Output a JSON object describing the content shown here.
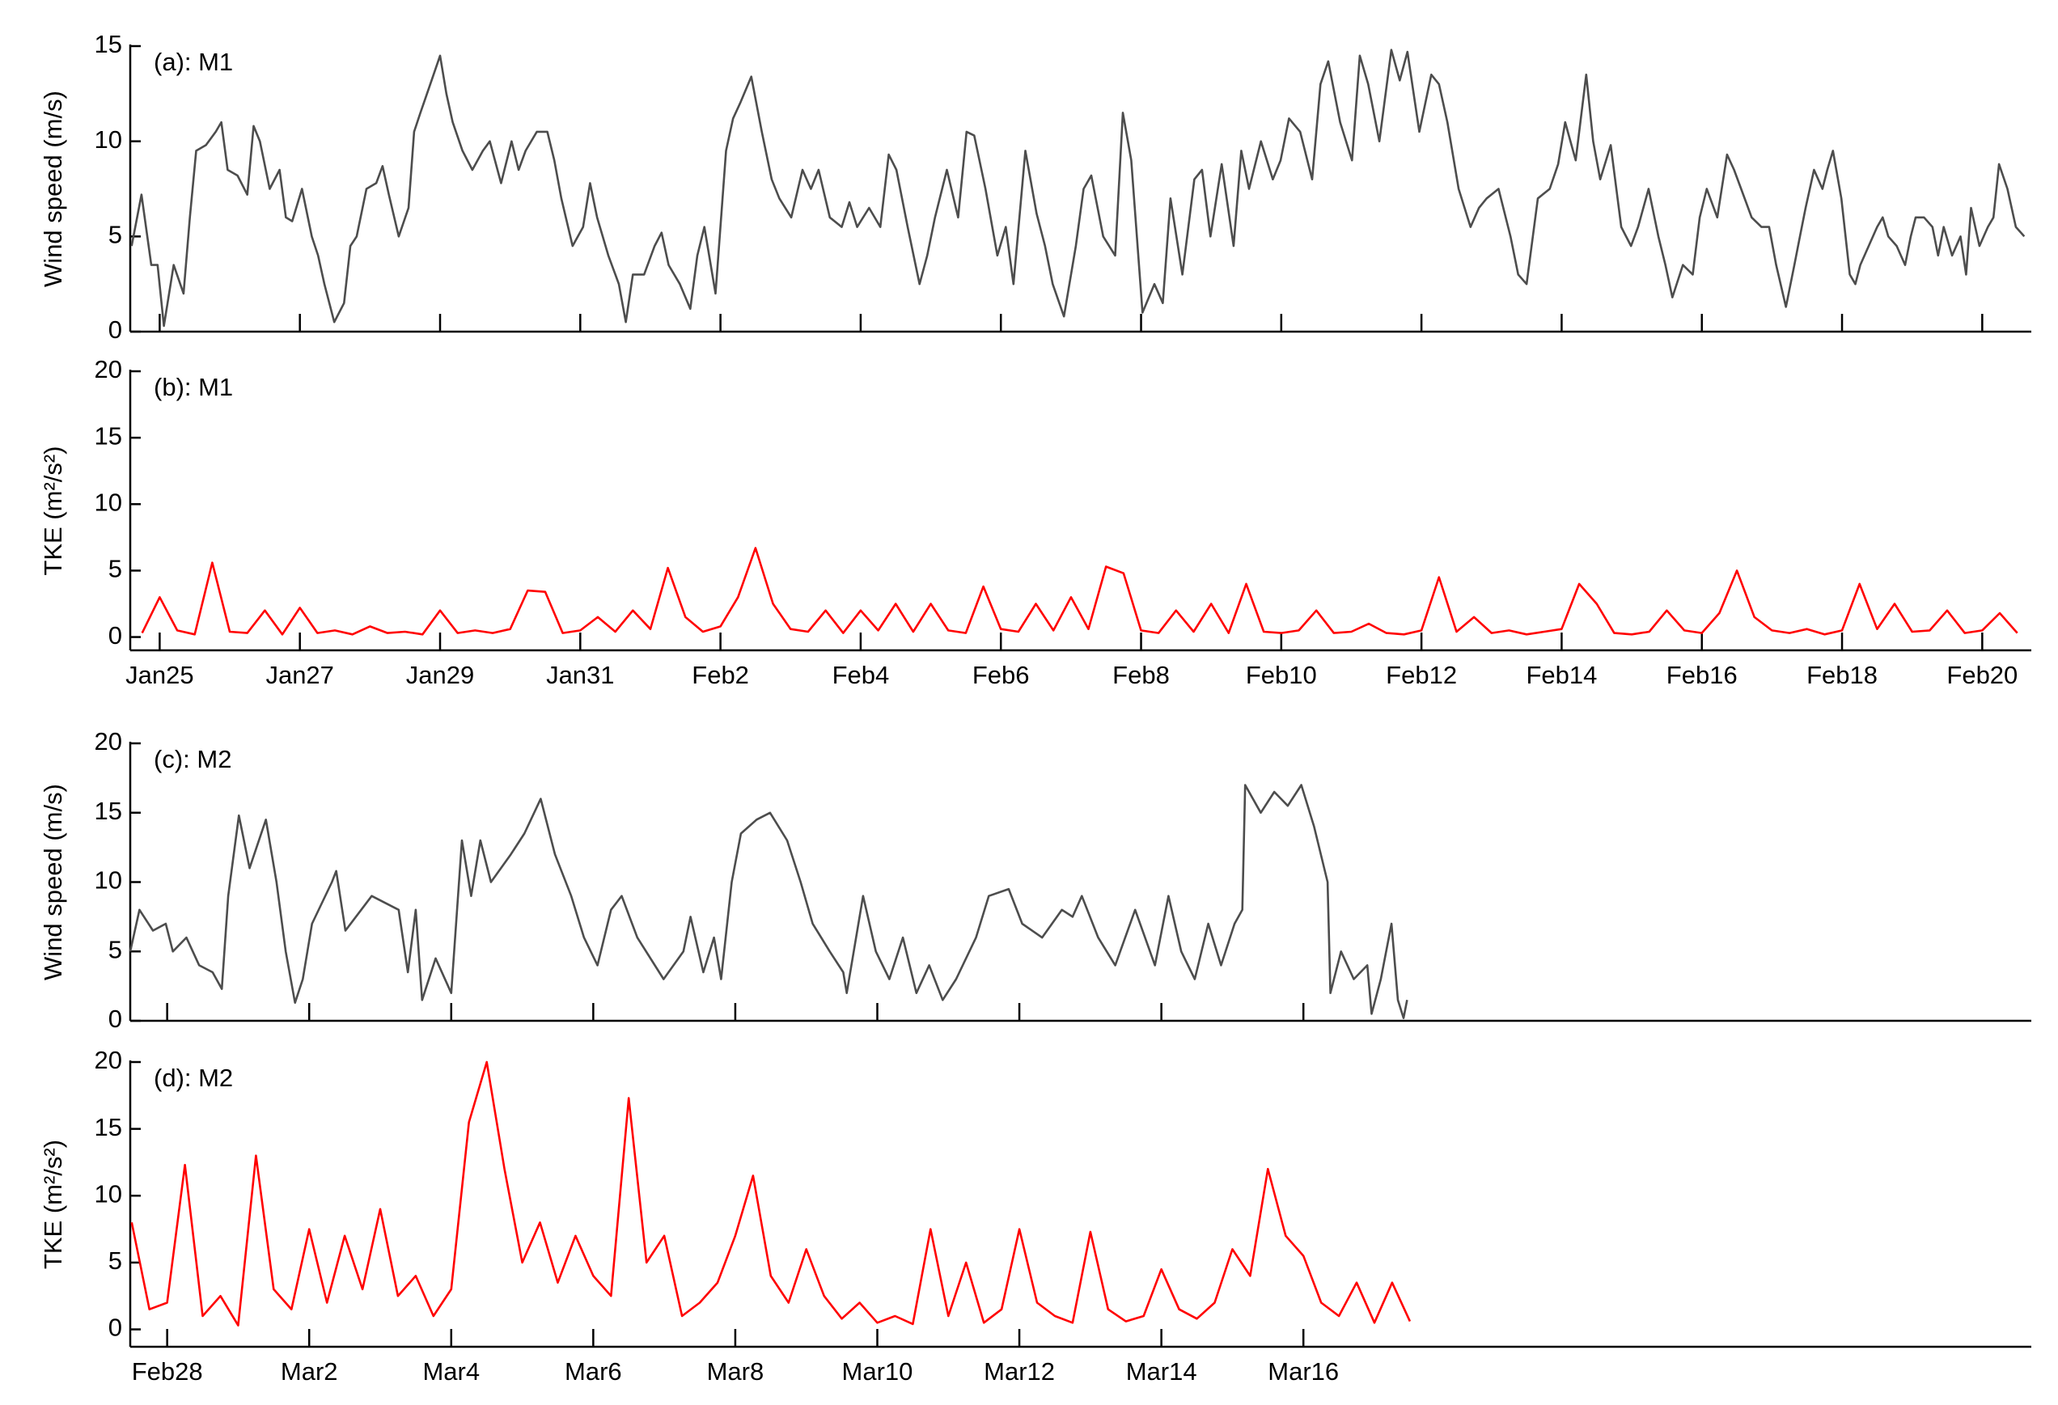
{
  "chart_data": [
    {
      "type": "line",
      "annotation": "(a): M1",
      "ylabel": "Wind speed (m/s)",
      "color": "#4d4d4d",
      "xlim": [
        24.58,
        51.7
      ],
      "ylim": [
        0,
        15
      ],
      "yticks": [
        0,
        5,
        10,
        15
      ],
      "x": [
        24.6,
        24.74,
        24.88,
        24.97,
        25.06,
        25.2,
        25.34,
        25.43,
        25.52,
        25.66,
        25.8,
        25.88,
        25.97,
        26.11,
        26.25,
        26.34,
        26.43,
        26.57,
        26.71,
        26.8,
        26.89,
        27.03,
        27.17,
        27.26,
        27.35,
        27.49,
        27.63,
        27.72,
        27.81,
        27.95,
        28.09,
        28.18,
        28.27,
        28.41,
        28.55,
        28.63,
        28.72,
        28.86,
        29.0,
        29.09,
        29.18,
        29.32,
        29.46,
        29.61,
        29.71,
        29.87,
        30.02,
        30.12,
        30.22,
        30.38,
        30.53,
        30.63,
        30.73,
        30.89,
        31.04,
        31.14,
        31.24,
        31.4,
        31.55,
        31.65,
        31.75,
        31.91,
        32.06,
        32.16,
        32.26,
        32.42,
        32.57,
        32.67,
        32.77,
        32.93,
        33.08,
        33.18,
        33.28,
        33.44,
        33.59,
        33.73,
        33.84,
        34.01,
        34.17,
        34.29,
        34.4,
        34.56,
        34.73,
        34.84,
        34.95,
        35.12,
        35.28,
        35.4,
        35.51,
        35.67,
        35.84,
        35.95,
        36.06,
        36.23,
        36.39,
        36.51,
        36.62,
        36.78,
        36.95,
        37.07,
        37.18,
        37.35,
        37.51,
        37.63,
        37.74,
        37.9,
        38.07,
        38.18,
        38.29,
        38.46,
        38.63,
        38.74,
        38.86,
        39.02,
        39.19,
        39.31,
        39.42,
        39.59,
        39.76,
        39.87,
        39.99,
        40.15,
        40.32,
        40.43,
        40.54,
        40.71,
        40.88,
        40.99,
        41.11,
        41.27,
        41.44,
        41.56,
        41.67,
        41.84,
        42.01,
        42.12,
        42.24,
        42.4,
        42.57,
        42.69,
        42.8,
        42.97,
        43.14,
        43.25,
        43.37,
        43.53,
        43.7,
        43.82,
        43.93,
        44.1,
        44.27,
        44.38,
        44.5,
        44.66,
        44.83,
        44.95,
        45.05,
        45.2,
        45.35,
        45.45,
        45.55,
        45.7,
        45.85,
        45.99,
        46.09,
        46.24,
        46.38,
        46.48,
        46.58,
        46.73,
        46.87,
        46.97,
        47.07,
        47.22,
        47.36,
        47.46,
        47.56,
        47.71,
        47.85,
        47.96,
        48.06,
        48.2,
        48.32,
        48.4,
        48.48,
        48.6,
        48.72,
        48.79,
        48.87,
        48.99,
        49.11,
        49.19,
        49.26,
        49.38,
        49.5,
        49.58,
        49.66,
        49.78,
        49.9,
        49.98,
        50.05,
        50.17,
        50.29,
        50.37,
        50.45,
        50.57,
        50.69,
        50.77,
        50.84,
        50.96,
        51.08,
        51.16,
        51.24,
        51.36,
        51.48,
        51.6
      ],
      "values": [
        4.5,
        7.2,
        3.5,
        3.5,
        0.3,
        3.5,
        2,
        6,
        9.5,
        9.8,
        10.5,
        11.0,
        8.5,
        8.2,
        7.2,
        10.8,
        10,
        7.5,
        8.5,
        6,
        5.8,
        7.5,
        5,
        4,
        2.5,
        0.5,
        1.5,
        4.5,
        5,
        7.5,
        7.8,
        8.7,
        7.2,
        5,
        6.5,
        10.5,
        11.5,
        13,
        14.5,
        12.5,
        11,
        9.5,
        8.5,
        9.5,
        10,
        7.8,
        10,
        8.5,
        9.5,
        10.5,
        10.5,
        9,
        7,
        4.5,
        5.5,
        7.8,
        6,
        4,
        2.5,
        0.5,
        3,
        3,
        4.5,
        5.2,
        3.5,
        2.5,
        1.2,
        4,
        5.5,
        2,
        9.5,
        11.2,
        12,
        13.4,
        10.5,
        8,
        7,
        6,
        8.5,
        7.5,
        8.5,
        6,
        5.5,
        6.8,
        5.5,
        6.5,
        5.5,
        9.3,
        8.5,
        5.5,
        2.5,
        4,
        6,
        8.5,
        6,
        10.5,
        10.3,
        7.5,
        4,
        5.5,
        2.5,
        9.5,
        6.2,
        4.5,
        2.5,
        0.8,
        4.5,
        7.5,
        8.2,
        5,
        4,
        11.5,
        9,
        1,
        2.5,
        1.5,
        7,
        3,
        8,
        8.5,
        5,
        8.8,
        4.5,
        9.5,
        7.5,
        10,
        8,
        9,
        11.2,
        10.5,
        8,
        13,
        14.2,
        11,
        9,
        14.5,
        13,
        10,
        14.8,
        13.2,
        14.7,
        10.5,
        13.5,
        13,
        11,
        7.5,
        5.5,
        6.5,
        7,
        7.5,
        5,
        3,
        2.5,
        7,
        7.5,
        8.8,
        11,
        9,
        13.5,
        10,
        8,
        9.8,
        5.5,
        4.5,
        5.5,
        7.5,
        5,
        3.5,
        1.8,
        3.5,
        3,
        6,
        7.5,
        6,
        9.3,
        8.5,
        7.5,
        6,
        5.5,
        5.5,
        3.5,
        1.3,
        3.5,
        5,
        6.5,
        8.5,
        7.5,
        8.5,
        9.5,
        7,
        3,
        2.5,
        3.5,
        4.5,
        5.5,
        6,
        5,
        4.5,
        3.5,
        5,
        6,
        6,
        5.5,
        4,
        5.5,
        4,
        5,
        3,
        6.5,
        4.5,
        5.5,
        6,
        8.8,
        7.5,
        5.5,
        5
      ]
    },
    {
      "type": "line",
      "annotation": "(b): M1",
      "ylabel": "TKE (m²/s²)",
      "color": "#ff0000",
      "xlim": [
        24.58,
        51.7
      ],
      "ylim": [
        -1,
        20
      ],
      "yticks": [
        0,
        5,
        10,
        15,
        20
      ],
      "xticks": [
        {
          "value": 25,
          "label": "Jan25"
        },
        {
          "value": 27,
          "label": "Jan27"
        },
        {
          "value": 29,
          "label": "Jan29"
        },
        {
          "value": 31,
          "label": "Jan31"
        },
        {
          "value": 33,
          "label": "Feb2"
        },
        {
          "value": 35,
          "label": "Feb4"
        },
        {
          "value": 37,
          "label": "Feb6"
        },
        {
          "value": 39,
          "label": "Feb8"
        },
        {
          "value": 41,
          "label": "Feb10"
        },
        {
          "value": 43,
          "label": "Feb12"
        },
        {
          "value": 45,
          "label": "Feb14"
        },
        {
          "value": 47,
          "label": "Feb16"
        },
        {
          "value": 49,
          "label": "Feb18"
        },
        {
          "value": 51,
          "label": "Feb20"
        }
      ],
      "x": [
        24.75,
        25.0,
        25.25,
        25.5,
        25.75,
        26.0,
        26.25,
        26.5,
        26.75,
        27.0,
        27.25,
        27.5,
        27.75,
        28.0,
        28.25,
        28.5,
        28.75,
        29.0,
        29.25,
        29.5,
        29.75,
        30.0,
        30.25,
        30.5,
        30.75,
        31.0,
        31.25,
        31.5,
        31.75,
        32.0,
        32.25,
        32.5,
        32.75,
        33.0,
        33.25,
        33.5,
        33.75,
        34.0,
        34.25,
        34.5,
        34.75,
        35.0,
        35.25,
        35.5,
        35.75,
        36.0,
        36.25,
        36.5,
        36.75,
        37.0,
        37.25,
        37.5,
        37.75,
        38.0,
        38.25,
        38.5,
        38.75,
        39.0,
        39.25,
        39.5,
        39.75,
        40.0,
        40.25,
        40.5,
        40.75,
        41.0,
        41.25,
        41.5,
        41.75,
        42.0,
        42.25,
        42.5,
        42.75,
        43.0,
        43.25,
        43.5,
        43.75,
        44.0,
        44.25,
        44.5,
        44.75,
        45.0,
        45.25,
        45.5,
        45.75,
        46.0,
        46.25,
        46.5,
        46.75,
        47.0,
        47.25,
        47.5,
        47.75,
        48.0,
        48.25,
        48.5,
        48.75,
        49.0,
        49.25,
        49.5,
        49.75,
        50.0,
        50.25,
        50.5,
        50.75,
        51.0,
        51.25,
        51.5
      ],
      "values": [
        0.3,
        3.0,
        0.5,
        0.2,
        5.6,
        0.4,
        0.3,
        2.0,
        0.2,
        2.2,
        0.3,
        0.5,
        0.2,
        0.8,
        0.3,
        0.4,
        0.2,
        2.0,
        0.3,
        0.5,
        0.3,
        0.6,
        3.5,
        3.4,
        0.3,
        0.5,
        1.5,
        0.4,
        2.0,
        0.6,
        5.2,
        1.5,
        0.4,
        0.8,
        3.0,
        6.7,
        2.5,
        0.6,
        0.4,
        2.0,
        0.3,
        2.0,
        0.5,
        2.5,
        0.4,
        2.5,
        0.5,
        0.3,
        3.8,
        0.6,
        0.4,
        2.5,
        0.5,
        3.0,
        0.6,
        5.3,
        4.8,
        0.5,
        0.3,
        2.0,
        0.4,
        2.5,
        0.3,
        4.0,
        0.4,
        0.3,
        0.5,
        2.0,
        0.3,
        0.4,
        1.0,
        0.3,
        0.2,
        0.5,
        4.5,
        0.4,
        1.5,
        0.3,
        0.5,
        0.2,
        0.4,
        0.6,
        4.0,
        2.5,
        0.3,
        0.2,
        0.4,
        2.0,
        0.5,
        0.3,
        1.8,
        5.0,
        1.5,
        0.5,
        0.3,
        0.6,
        0.2,
        0.5,
        4.0,
        0.6,
        2.5,
        0.4,
        0.5,
        2.0,
        0.3,
        0.5,
        1.8,
        0.3
      ]
    },
    {
      "type": "line",
      "annotation": "(c): M2",
      "ylabel": "Wind speed (m/s)",
      "color": "#4d4d4d",
      "xlim": [
        58.48,
        85.25
      ],
      "ylim": [
        0,
        20
      ],
      "yticks": [
        0,
        5,
        10,
        15,
        20
      ],
      "x": [
        58.48,
        58.61,
        58.8,
        58.98,
        59.08,
        59.27,
        59.45,
        59.64,
        59.77,
        59.86,
        60.01,
        60.16,
        60.39,
        60.54,
        60.67,
        60.8,
        60.91,
        61.04,
        61.32,
        61.38,
        61.51,
        61.88,
        62.26,
        62.39,
        62.5,
        62.59,
        62.78,
        63.0,
        63.15,
        63.28,
        63.41,
        63.56,
        63.84,
        64.03,
        64.26,
        64.46,
        64.69,
        64.87,
        65.06,
        65.25,
        65.4,
        65.62,
        65.99,
        66.27,
        66.37,
        66.55,
        66.7,
        66.8,
        66.95,
        67.08,
        67.3,
        67.49,
        67.73,
        67.92,
        68.09,
        68.33,
        68.52,
        68.57,
        68.8,
        68.98,
        69.17,
        69.36,
        69.55,
        69.73,
        69.92,
        70.11,
        70.39,
        70.57,
        70.85,
        71.04,
        71.32,
        71.6,
        71.75,
        71.88,
        72.11,
        72.35,
        72.63,
        72.91,
        73.1,
        73.28,
        73.47,
        73.66,
        73.84,
        74.03,
        74.14,
        74.18,
        74.4,
        74.59,
        74.78,
        74.97,
        75.15,
        75.34,
        75.38,
        75.53,
        75.71,
        75.9,
        75.96,
        76.09,
        76.24,
        76.33,
        76.41,
        76.46
      ],
      "values": [
        5.0,
        8.0,
        6.5,
        7.0,
        5.0,
        6.0,
        4.0,
        3.5,
        2.3,
        9.0,
        14.8,
        11.0,
        14.5,
        10.0,
        5.0,
        1.3,
        3.0,
        7.0,
        10.0,
        10.8,
        6.5,
        9.0,
        8.0,
        3.5,
        8.0,
        1.5,
        4.5,
        2.0,
        13.0,
        9.0,
        13.0,
        10.0,
        12.0,
        13.5,
        16.0,
        12.0,
        9.0,
        6.0,
        4.0,
        8.0,
        9.0,
        6.0,
        3.0,
        5.0,
        7.5,
        3.5,
        6.0,
        3.0,
        10.0,
        13.5,
        14.5,
        15.0,
        13.0,
        10.0,
        7.0,
        5.0,
        3.5,
        2.0,
        9.0,
        5.0,
        3.0,
        6.0,
        2.0,
        4.0,
        1.5,
        3.0,
        6.0,
        9.0,
        9.5,
        7.0,
        6.0,
        8.0,
        7.5,
        9.0,
        6.0,
        4.0,
        8.0,
        4.0,
        9.0,
        5.0,
        3.0,
        7.0,
        4.0,
        7.0,
        8.0,
        17.0,
        15.0,
        16.5,
        15.5,
        17.0,
        14.0,
        10.0,
        2.0,
        5.0,
        3.0,
        4.0,
        0.5,
        3.0,
        7.0,
        1.5,
        0.2,
        1.5
      ]
    },
    {
      "type": "line",
      "annotation": "(d): M2",
      "ylabel": "TKE (m²/s²)",
      "color": "#ff0000",
      "xlim": [
        58.48,
        85.25
      ],
      "ylim": [
        -1.3,
        20
      ],
      "yticks": [
        0,
        5,
        10,
        15,
        20
      ],
      "xticks": [
        {
          "value": 59,
          "label": "Feb28"
        },
        {
          "value": 61,
          "label": "Mar2"
        },
        {
          "value": 63,
          "label": "Mar4"
        },
        {
          "value": 65,
          "label": "Mar6"
        },
        {
          "value": 67,
          "label": "Mar8"
        },
        {
          "value": 69,
          "label": "Mar10"
        },
        {
          "value": 71,
          "label": "Mar12"
        },
        {
          "value": 73,
          "label": "Mar14"
        },
        {
          "value": 75,
          "label": "Mar16"
        }
      ],
      "x": [
        58.5,
        58.75,
        59.0,
        59.25,
        59.5,
        59.75,
        60.0,
        60.25,
        60.5,
        60.75,
        61.0,
        61.25,
        61.5,
        61.75,
        62.0,
        62.25,
        62.5,
        62.75,
        63.0,
        63.25,
        63.5,
        63.75,
        64.0,
        64.25,
        64.5,
        64.75,
        65.0,
        65.25,
        65.5,
        65.75,
        66.0,
        66.25,
        66.5,
        66.75,
        67.0,
        67.25,
        67.5,
        67.75,
        68.0,
        68.25,
        68.5,
        68.75,
        69.0,
        69.25,
        69.5,
        69.75,
        70.0,
        70.25,
        70.5,
        70.75,
        71.0,
        71.25,
        71.5,
        71.75,
        72.0,
        72.25,
        72.5,
        72.75,
        73.0,
        73.25,
        73.5,
        73.75,
        74.0,
        74.25,
        74.5,
        74.75,
        75.0,
        75.25,
        75.5,
        75.75,
        76.0,
        76.25,
        76.5
      ],
      "values": [
        8.0,
        1.5,
        2.0,
        12.3,
        1.0,
        2.5,
        0.3,
        13.0,
        3.0,
        1.5,
        7.5,
        2.0,
        7.0,
        3.0,
        9.0,
        2.5,
        4.0,
        1.0,
        3.0,
        15.5,
        20.0,
        12.0,
        5.0,
        8.0,
        3.5,
        7.0,
        4.0,
        2.5,
        17.3,
        5.0,
        7.0,
        1.0,
        2.0,
        3.5,
        7.0,
        11.5,
        4.0,
        2.0,
        6.0,
        2.5,
        0.8,
        2.0,
        0.5,
        1.0,
        0.4,
        7.5,
        1.0,
        5.0,
        0.5,
        1.5,
        7.5,
        2.0,
        1.0,
        0.5,
        7.3,
        1.5,
        0.6,
        1.0,
        4.5,
        1.5,
        0.8,
        2.0,
        6.0,
        4.0,
        12.0,
        7.0,
        5.5,
        2.0,
        1.0,
        3.5,
        0.5,
        3.5,
        0.6
      ]
    }
  ]
}
